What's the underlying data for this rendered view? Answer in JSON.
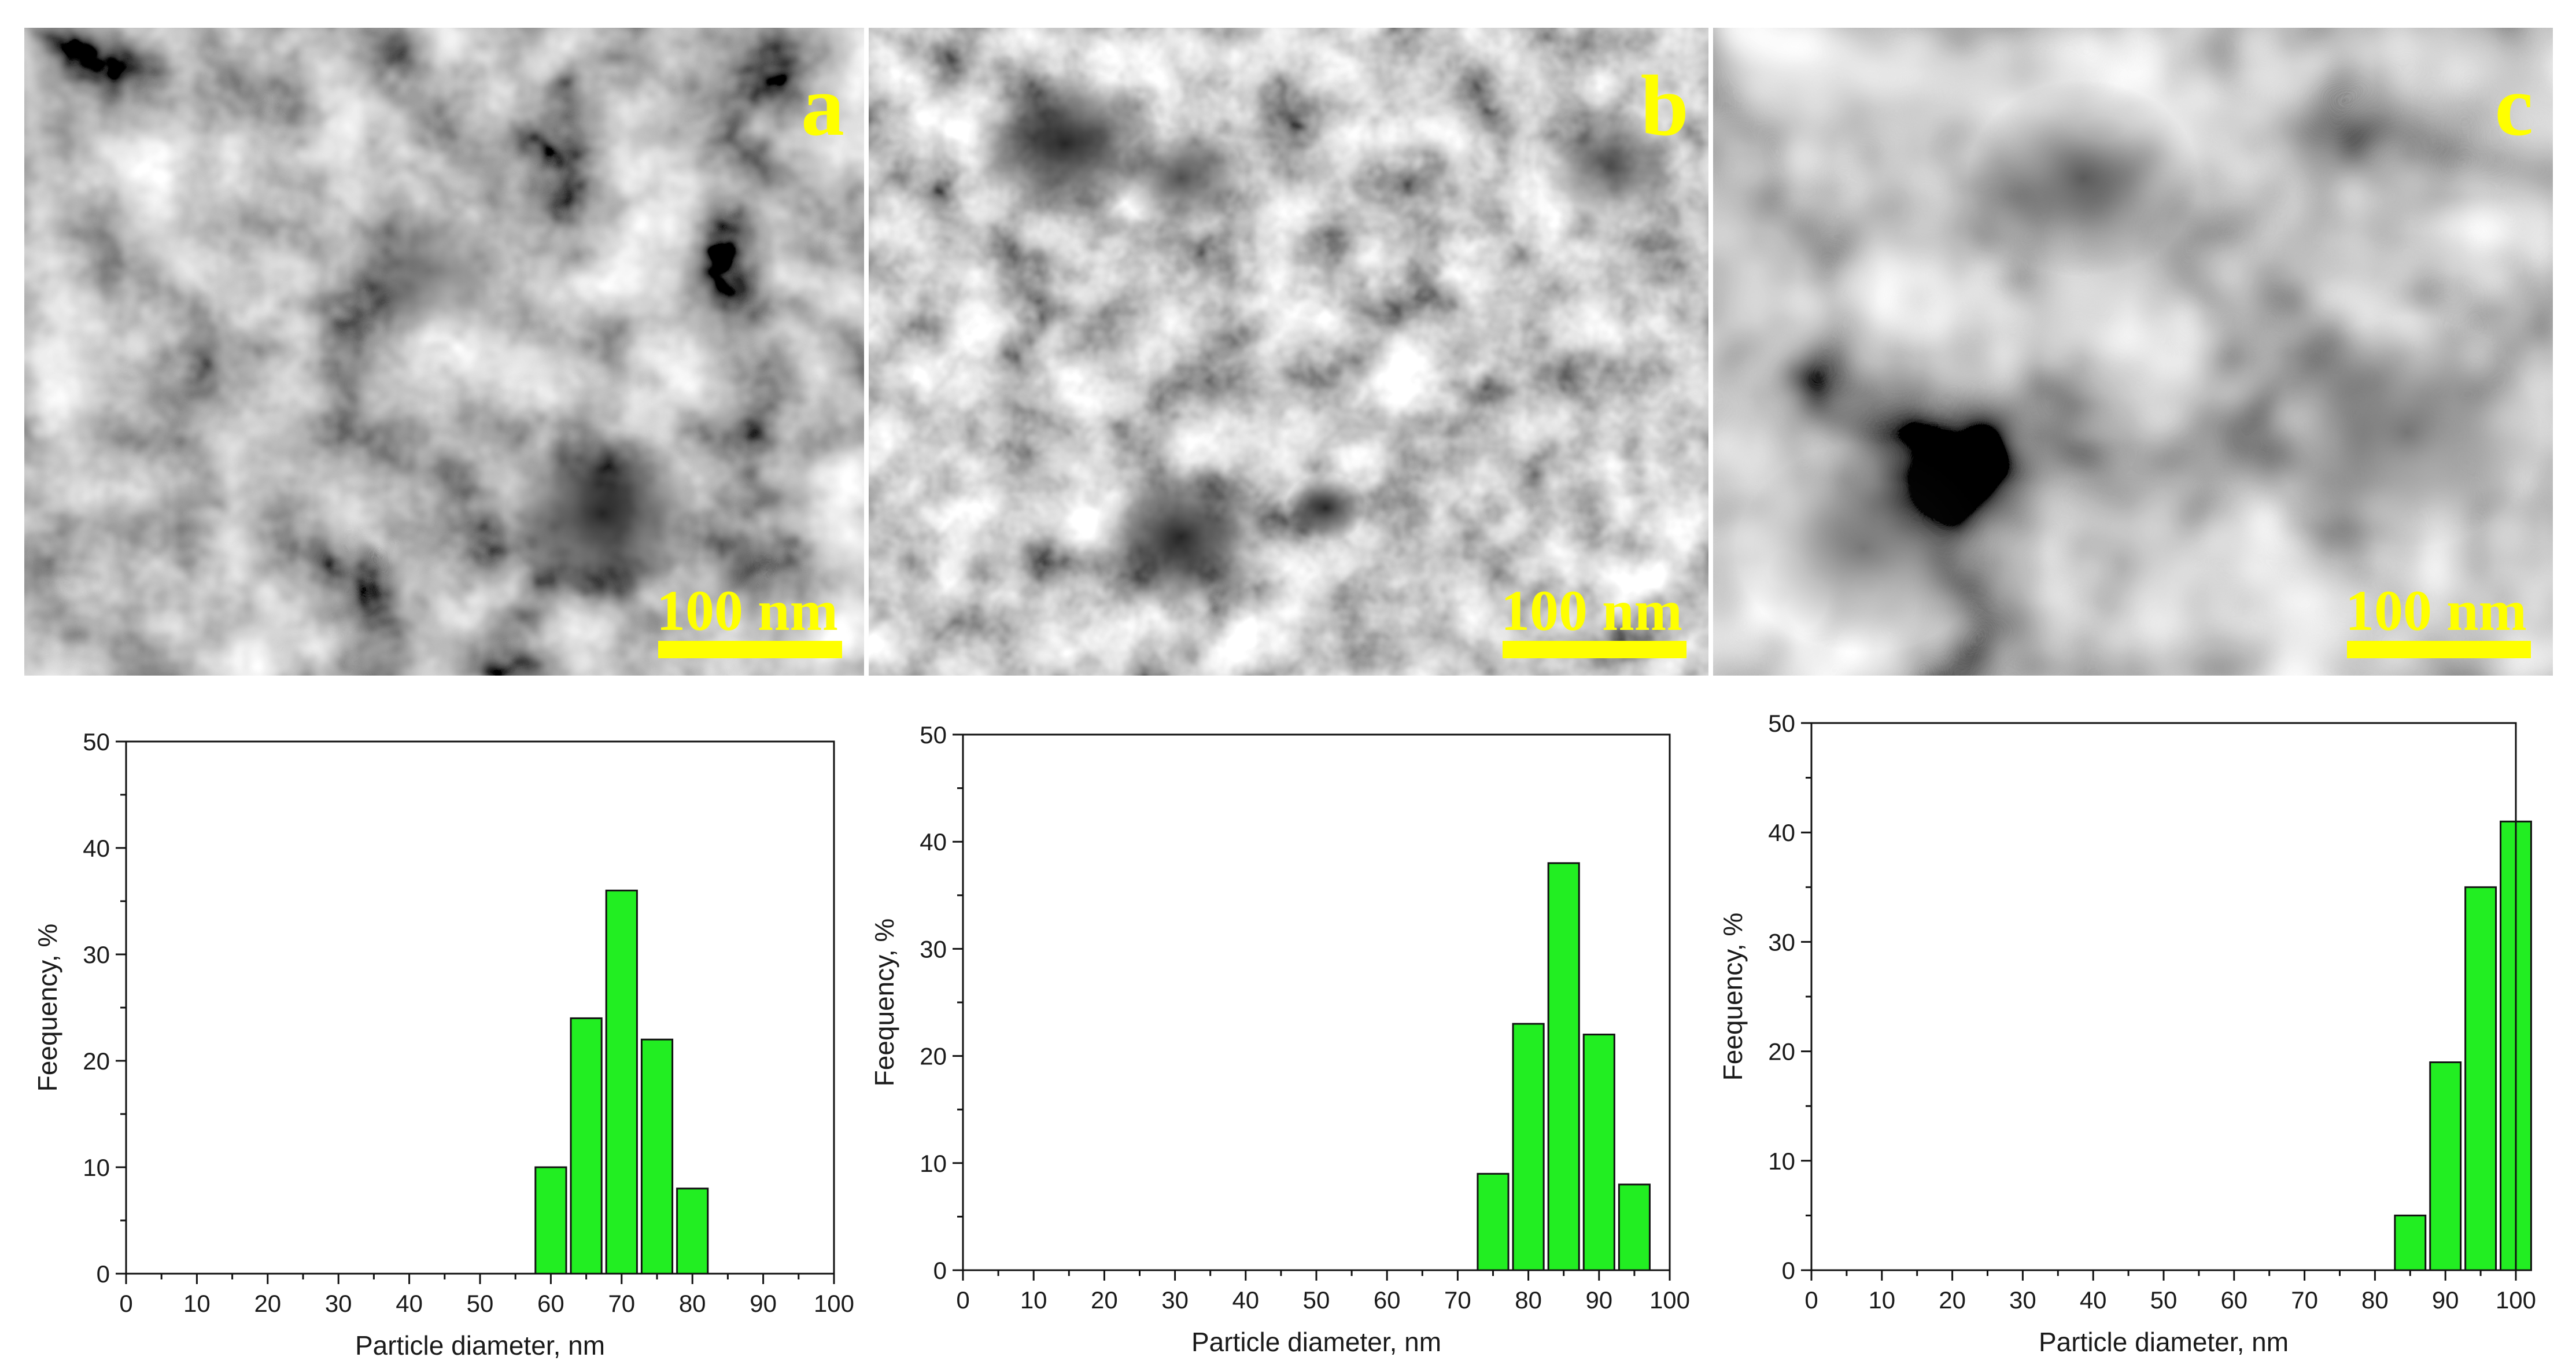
{
  "colors": {
    "bar_fill": "#22ee22",
    "bar_stroke": "#111111",
    "label_yellow": "#ffff00",
    "axis": "#111111"
  },
  "micrographs": [
    {
      "letter": "a",
      "scale_label": "100 nm",
      "texture": "fine-network"
    },
    {
      "letter": "b",
      "scale_label": "100 nm",
      "texture": "fine-network-with-dark-pores"
    },
    {
      "letter": "c",
      "scale_label": "100 nm",
      "texture": "coarse-blobs"
    }
  ],
  "chart_data": [
    {
      "type": "bar",
      "xlabel": "Particle diameter, nm",
      "ylabel": "Feequency, %",
      "xlim": [
        0,
        100
      ],
      "ylim": [
        0,
        50
      ],
      "xticks": [
        0,
        10,
        20,
        30,
        40,
        50,
        60,
        70,
        80,
        90,
        100
      ],
      "yticks": [
        0,
        10,
        20,
        30,
        40,
        50
      ],
      "bin_width": 5,
      "x": [
        60,
        65,
        70,
        75,
        80
      ],
      "values": [
        10,
        24,
        36,
        22,
        8
      ],
      "grid": false
    },
    {
      "type": "bar",
      "xlabel": "Particle diameter, nm",
      "ylabel": "Feequency, %",
      "xlim": [
        0,
        100
      ],
      "ylim": [
        0,
        50
      ],
      "xticks": [
        0,
        10,
        20,
        30,
        40,
        50,
        60,
        70,
        80,
        90,
        100
      ],
      "yticks": [
        0,
        10,
        20,
        30,
        40,
        50
      ],
      "bin_width": 5,
      "x": [
        75,
        80,
        85,
        90,
        95
      ],
      "values": [
        9,
        23,
        38,
        22,
        8
      ],
      "grid": false
    },
    {
      "type": "bar",
      "xlabel": "Particle diameter, nm",
      "ylabel": "Feequency, %",
      "xlim": [
        0,
        100
      ],
      "ylim": [
        0,
        50
      ],
      "xticks": [
        0,
        10,
        20,
        30,
        40,
        50,
        60,
        70,
        80,
        90,
        100
      ],
      "yticks": [
        0,
        10,
        20,
        30,
        40,
        50
      ],
      "bin_width": 5,
      "x": [
        85,
        90,
        95,
        100
      ],
      "values": [
        5,
        19,
        35,
        41
      ],
      "grid": false
    }
  ]
}
